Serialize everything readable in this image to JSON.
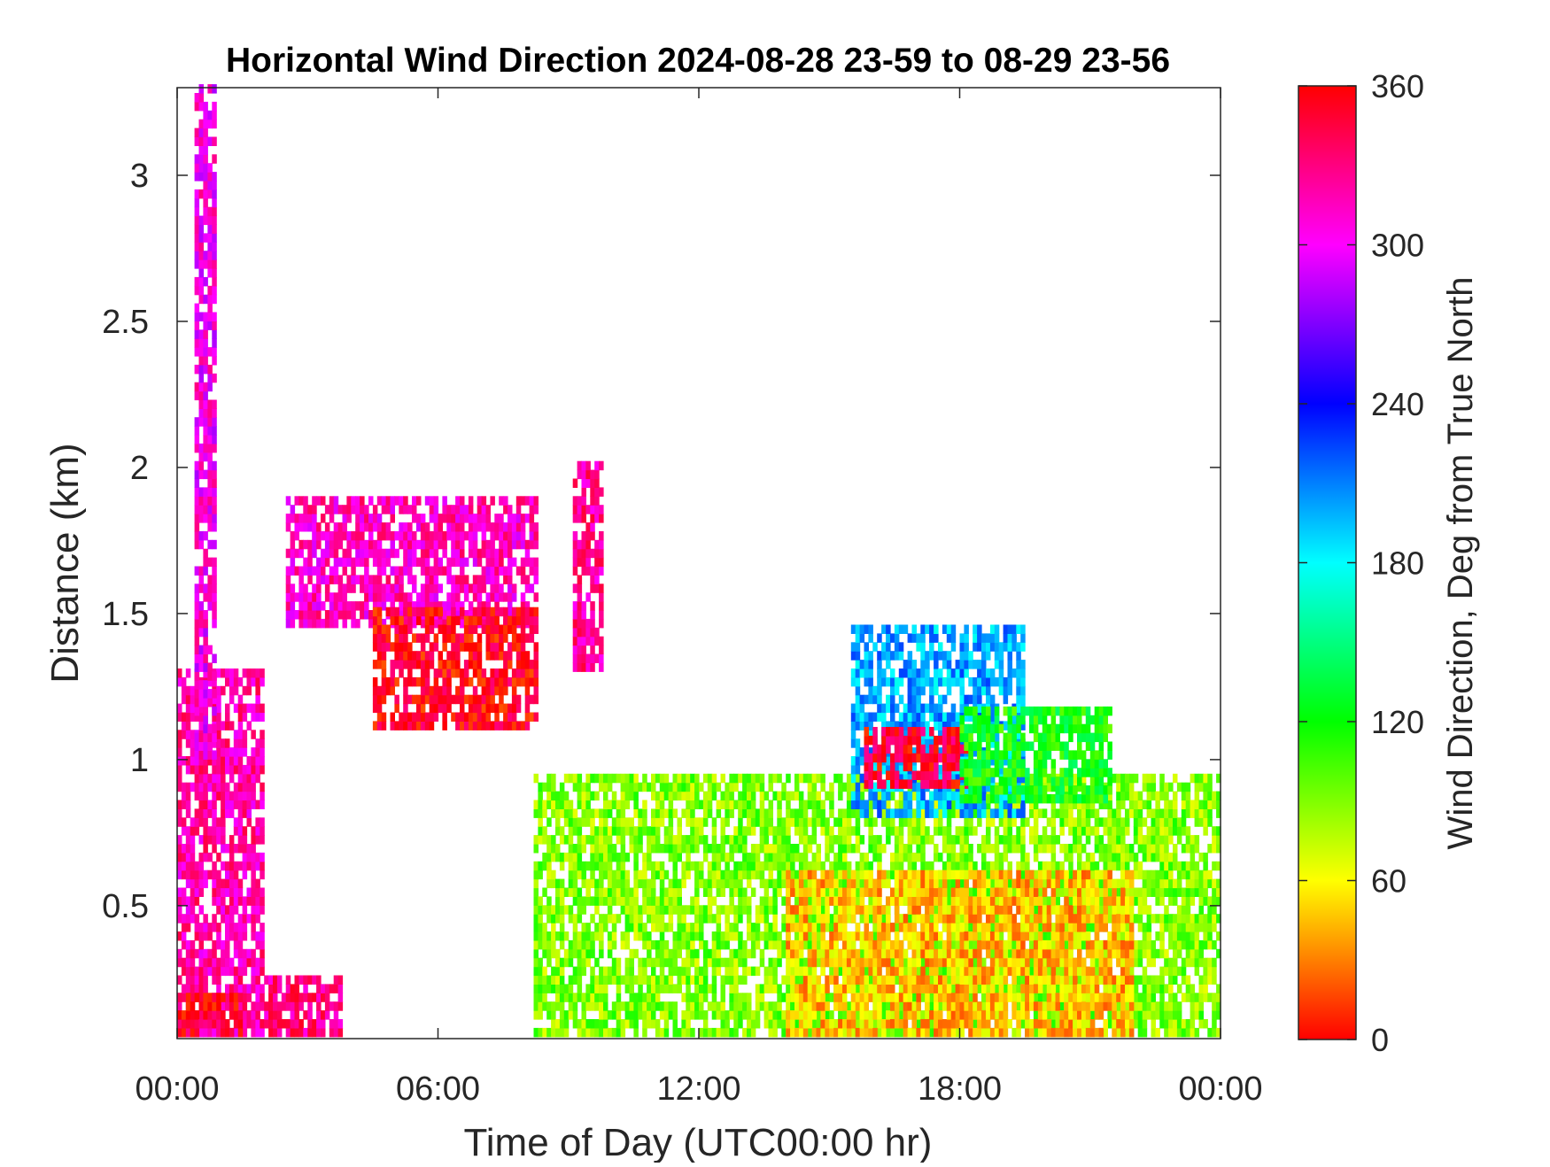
{
  "chart_data": {
    "type": "heatmap",
    "title": "Horizontal Wind Direction 2024-08-28 23-59 to 08-29 23-56",
    "xlabel": "Time of Day (UTC00:00 hr)",
    "ylabel": "Distance (km)",
    "x_unit": "hours",
    "y_unit": "km",
    "xlim": [
      0,
      24
    ],
    "ylim": [
      0.045,
      3.3
    ],
    "x_ticks": [
      0,
      6,
      12,
      18,
      24
    ],
    "x_tick_labels": [
      "00:00",
      "06:00",
      "12:00",
      "18:00",
      "00:00"
    ],
    "y_ticks": [
      0.5,
      1,
      1.5,
      2,
      2.5,
      3
    ],
    "y_tick_labels": [
      "0.5",
      "1",
      "1.5",
      "2",
      "2.5",
      "3"
    ],
    "colorbar": {
      "label": "Wind Direction, Deg from True North",
      "colormap": "hsv",
      "clim": [
        0,
        360
      ],
      "ticks": [
        0,
        60,
        120,
        180,
        240,
        300,
        360
      ],
      "tick_labels": [
        "0",
        "60",
        "120",
        "180",
        "240",
        "300",
        "360"
      ]
    },
    "regions": [
      {
        "name": "early-morning low magenta layer",
        "x": [
          0,
          2
        ],
        "y": [
          0.05,
          1.3
        ],
        "direction_deg": 320
      },
      {
        "name": "early-morning tall plume",
        "x": [
          0.4,
          0.8
        ],
        "y": [
          1.0,
          3.3
        ],
        "direction_deg": 305
      },
      {
        "name": "near-surface red patch",
        "x": [
          0,
          1.5
        ],
        "y": [
          0.05,
          0.2
        ],
        "direction_deg": 350
      },
      {
        "name": "surface mixed patch",
        "x": [
          2.0,
          3.8
        ],
        "y": [
          0.05,
          0.25
        ],
        "direction_deg": 330
      },
      {
        "name": "morning elevated magenta layer",
        "x": [
          2.5,
          8.2
        ],
        "y": [
          1.45,
          1.9
        ],
        "direction_deg": 315
      },
      {
        "name": "morning red layer",
        "x": [
          4.5,
          8.2
        ],
        "y": [
          1.1,
          1.5
        ],
        "direction_deg": 355
      },
      {
        "name": "late-morning plume",
        "x": [
          9.1,
          9.7
        ],
        "y": [
          1.3,
          2.0
        ],
        "direction_deg": 325
      },
      {
        "name": "daytime boundary layer",
        "x": [
          8.2,
          24
        ],
        "y": [
          0.05,
          0.95
        ],
        "direction_deg": 90
      },
      {
        "name": "afternoon near-surface veer",
        "x": [
          14,
          22
        ],
        "y": [
          0.05,
          0.6
        ],
        "direction_deg": 45
      },
      {
        "name": "afternoon elevated blue layer",
        "x": [
          15.5,
          19.5
        ],
        "y": [
          0.8,
          1.45
        ],
        "direction_deg": 200
      },
      {
        "name": "afternoon red cluster",
        "x": [
          15.8,
          18.2
        ],
        "y": [
          0.9,
          1.1
        ],
        "direction_deg": 350
      },
      {
        "name": "afternoon green top",
        "x": [
          18,
          21.5
        ],
        "y": [
          0.85,
          1.17
        ],
        "direction_deg": 120
      }
    ]
  }
}
